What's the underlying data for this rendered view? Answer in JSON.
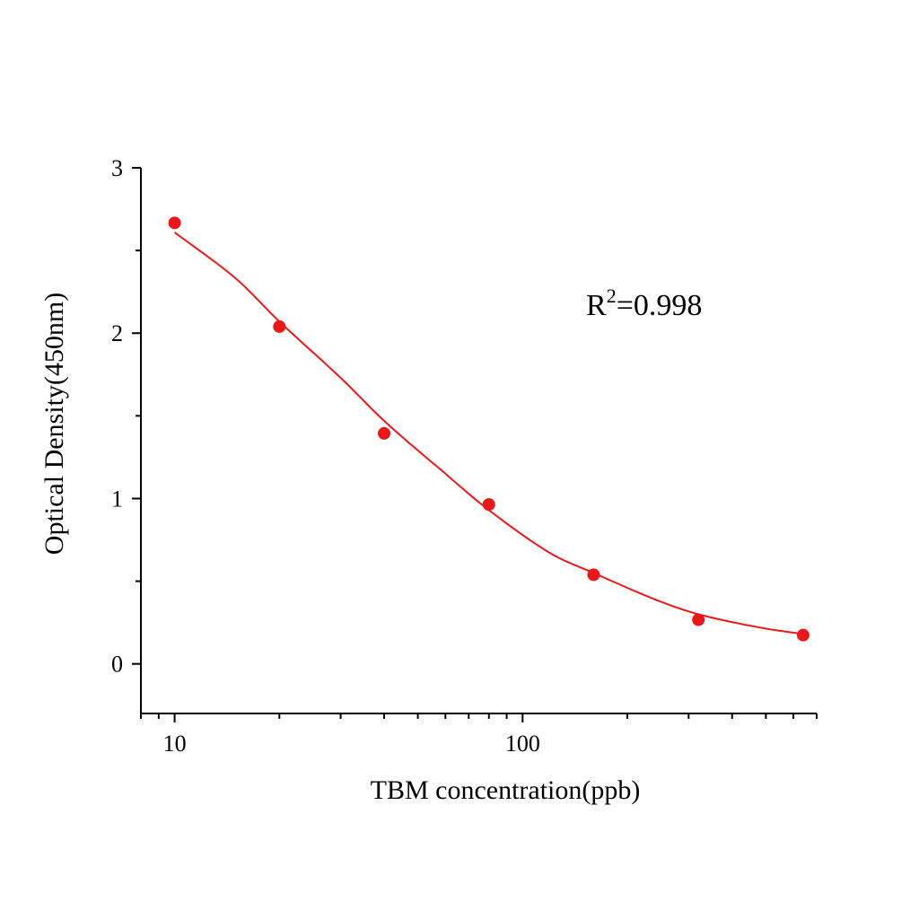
{
  "chart_data": {
    "type": "scatter",
    "title": "",
    "xlabel": "TBM concentration(ppb)",
    "ylabel": "Optical Density(450nm)",
    "x_scale": "log",
    "xlim": [
      8,
      700
    ],
    "ylim": [
      -0.3,
      3
    ],
    "x_ticks": [
      10,
      100
    ],
    "x_tick_labels": [
      "10",
      "100"
    ],
    "y_ticks": [
      0,
      1,
      2,
      3
    ],
    "y_tick_labels": [
      "0",
      "1",
      "2",
      "3"
    ],
    "grid": false,
    "legend": "none",
    "color": "#e8191a",
    "annotation": {
      "text": "R",
      "sup": "2",
      "rest": "=0.998"
    },
    "points": {
      "x": [
        10,
        20,
        40,
        80,
        160,
        320,
        640
      ],
      "y": [
        2.667,
        2.04,
        1.394,
        0.964,
        0.539,
        0.267,
        0.174
      ]
    },
    "fit_curve": {
      "x": [
        10,
        15,
        20,
        30,
        40,
        60,
        80,
        120,
        160,
        240,
        320,
        480,
        640
      ],
      "y": [
        2.61,
        2.33,
        2.07,
        1.73,
        1.47,
        1.15,
        0.93,
        0.67,
        0.55,
        0.39,
        0.3,
        0.22,
        0.18
      ]
    }
  }
}
